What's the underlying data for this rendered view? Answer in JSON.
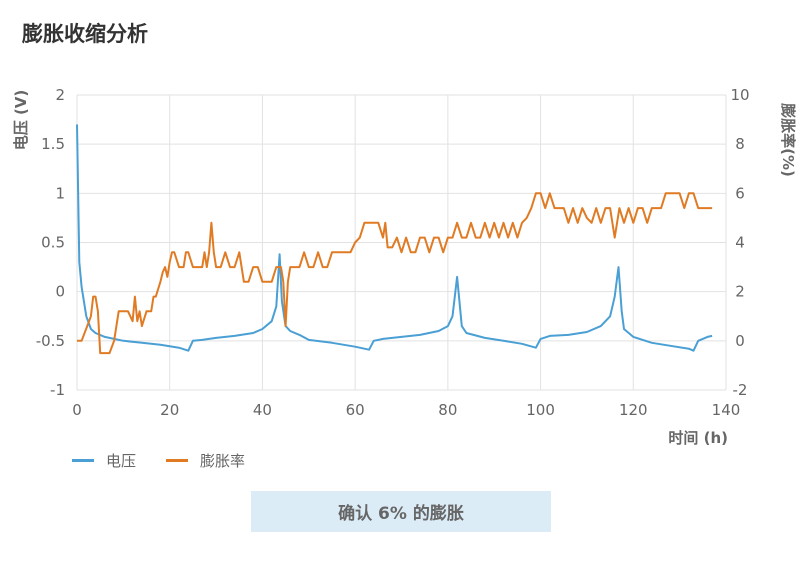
{
  "page": {
    "title": "膨胀收缩分析",
    "button_label": "确认 6% 的膨胀"
  },
  "chart_data": {
    "type": "line",
    "title": "",
    "xlabel": "时间 (h)",
    "ylabel_left": "电压 (V)",
    "ylabel_right": "膨胀率(%)",
    "xlim": [
      0,
      140
    ],
    "ylim_left": [
      -1,
      2
    ],
    "ylim_right": [
      -2,
      10
    ],
    "x_ticks": [
      0,
      20,
      40,
      60,
      80,
      100,
      120,
      140
    ],
    "y_ticks_left": [
      2,
      1.5,
      1,
      0.5,
      0,
      -0.5,
      -1
    ],
    "y_ticks_right": [
      10,
      8,
      6,
      4,
      2,
      0,
      -2
    ],
    "grid": true,
    "legend_position": "bottom-left",
    "colors": {
      "voltage": "#4a9fd4",
      "expansion": "#e07b24",
      "grid": "#e2e2e2",
      "axis_text": "#666666"
    },
    "series": [
      {
        "name": "电压",
        "axis": "left",
        "color": "#4a9fd4",
        "points": [
          [
            0,
            1.7
          ],
          [
            0.5,
            0.3
          ],
          [
            1,
            0.05
          ],
          [
            2,
            -0.25
          ],
          [
            3,
            -0.38
          ],
          [
            4,
            -0.42
          ],
          [
            6,
            -0.46
          ],
          [
            8,
            -0.48
          ],
          [
            10,
            -0.5
          ],
          [
            14,
            -0.52
          ],
          [
            18,
            -0.54
          ],
          [
            22,
            -0.57
          ],
          [
            24,
            -0.6
          ],
          [
            25,
            -0.5
          ],
          [
            27,
            -0.49
          ],
          [
            30,
            -0.47
          ],
          [
            34,
            -0.45
          ],
          [
            38,
            -0.42
          ],
          [
            40,
            -0.38
          ],
          [
            42,
            -0.3
          ],
          [
            43,
            -0.15
          ],
          [
            43.7,
            0.38
          ],
          [
            44.2,
            -0.1
          ],
          [
            45,
            -0.35
          ],
          [
            46,
            -0.4
          ],
          [
            48,
            -0.44
          ],
          [
            50,
            -0.49
          ],
          [
            55,
            -0.52
          ],
          [
            60,
            -0.56
          ],
          [
            63,
            -0.59
          ],
          [
            64,
            -0.5
          ],
          [
            66,
            -0.48
          ],
          [
            70,
            -0.46
          ],
          [
            74,
            -0.44
          ],
          [
            78,
            -0.4
          ],
          [
            80,
            -0.35
          ],
          [
            81,
            -0.25
          ],
          [
            82,
            0.15
          ],
          [
            83,
            -0.35
          ],
          [
            84,
            -0.42
          ],
          [
            88,
            -0.47
          ],
          [
            92,
            -0.5
          ],
          [
            96,
            -0.53
          ],
          [
            99,
            -0.57
          ],
          [
            100,
            -0.48
          ],
          [
            102,
            -0.45
          ],
          [
            106,
            -0.44
          ],
          [
            110,
            -0.41
          ],
          [
            113,
            -0.35
          ],
          [
            115,
            -0.25
          ],
          [
            116,
            -0.05
          ],
          [
            116.8,
            0.25
          ],
          [
            117.5,
            -0.2
          ],
          [
            118,
            -0.38
          ],
          [
            120,
            -0.46
          ],
          [
            124,
            -0.52
          ],
          [
            128,
            -0.55
          ],
          [
            132,
            -0.58
          ],
          [
            133,
            -0.6
          ],
          [
            134,
            -0.5
          ],
          [
            136,
            -0.46
          ],
          [
            137,
            -0.45
          ]
        ]
      },
      {
        "name": "膨胀率",
        "axis": "right",
        "color": "#e07b24",
        "points": [
          [
            0,
            0
          ],
          [
            1,
            0
          ],
          [
            2,
            0.5
          ],
          [
            3,
            1
          ],
          [
            3.5,
            1.8
          ],
          [
            4,
            1.8
          ],
          [
            4.5,
            1.2
          ],
          [
            5,
            -0.5
          ],
          [
            7,
            -0.5
          ],
          [
            8,
            0
          ],
          [
            9,
            1.2
          ],
          [
            11,
            1.2
          ],
          [
            12,
            0.8
          ],
          [
            12.5,
            1.8
          ],
          [
            13,
            0.8
          ],
          [
            13.5,
            1.2
          ],
          [
            14,
            0.6
          ],
          [
            15,
            1.2
          ],
          [
            16,
            1.2
          ],
          [
            16.5,
            1.8
          ],
          [
            17,
            1.8
          ],
          [
            18,
            2.4
          ],
          [
            18.5,
            2.8
          ],
          [
            19,
            3
          ],
          [
            19.5,
            2.6
          ],
          [
            20,
            3.2
          ],
          [
            20.5,
            3.6
          ],
          [
            21,
            3.6
          ],
          [
            22,
            3
          ],
          [
            23,
            3
          ],
          [
            23.5,
            3.6
          ],
          [
            24,
            3.6
          ],
          [
            25,
            3
          ],
          [
            26,
            3
          ],
          [
            27,
            3
          ],
          [
            27.5,
            3.6
          ],
          [
            28,
            3
          ],
          [
            28.5,
            3.6
          ],
          [
            29,
            4.8
          ],
          [
            29.5,
            3.6
          ],
          [
            30,
            3
          ],
          [
            31,
            3
          ],
          [
            32,
            3.6
          ],
          [
            33,
            3
          ],
          [
            34,
            3
          ],
          [
            35,
            3.6
          ],
          [
            35.5,
            3
          ],
          [
            36,
            2.4
          ],
          [
            37,
            2.4
          ],
          [
            38,
            3
          ],
          [
            39,
            3
          ],
          [
            40,
            2.4
          ],
          [
            41,
            2.4
          ],
          [
            42,
            2.4
          ],
          [
            43,
            3
          ],
          [
            44,
            3
          ],
          [
            44.5,
            2.4
          ],
          [
            45,
            0.6
          ],
          [
            45.5,
            2.4
          ],
          [
            46,
            3
          ],
          [
            47,
            3
          ],
          [
            48,
            3
          ],
          [
            49,
            3.6
          ],
          [
            50,
            3
          ],
          [
            51,
            3
          ],
          [
            52,
            3.6
          ],
          [
            53,
            3
          ],
          [
            54,
            3
          ],
          [
            55,
            3.6
          ],
          [
            56,
            3.6
          ],
          [
            57,
            3.6
          ],
          [
            58,
            3.6
          ],
          [
            59,
            3.6
          ],
          [
            60,
            4
          ],
          [
            61,
            4.2
          ],
          [
            62,
            4.8
          ],
          [
            63,
            4.8
          ],
          [
            64,
            4.8
          ],
          [
            65,
            4.8
          ],
          [
            66,
            4.2
          ],
          [
            66.5,
            4.8
          ],
          [
            67,
            3.8
          ],
          [
            68,
            3.8
          ],
          [
            69,
            4.2
          ],
          [
            70,
            3.6
          ],
          [
            71,
            4.2
          ],
          [
            72,
            3.6
          ],
          [
            73,
            3.6
          ],
          [
            74,
            4.2
          ],
          [
            75,
            4.2
          ],
          [
            76,
            3.6
          ],
          [
            77,
            4.2
          ],
          [
            78,
            4.2
          ],
          [
            79,
            3.6
          ],
          [
            80,
            4.2
          ],
          [
            81,
            4.2
          ],
          [
            82,
            4.8
          ],
          [
            83,
            4.2
          ],
          [
            84,
            4.2
          ],
          [
            85,
            4.8
          ],
          [
            86,
            4.2
          ],
          [
            87,
            4.2
          ],
          [
            88,
            4.8
          ],
          [
            89,
            4.2
          ],
          [
            90,
            4.8
          ],
          [
            91,
            4.2
          ],
          [
            92,
            4.8
          ],
          [
            93,
            4.2
          ],
          [
            94,
            4.8
          ],
          [
            95,
            4.2
          ],
          [
            96,
            4.8
          ],
          [
            97,
            5
          ],
          [
            98,
            5.4
          ],
          [
            99,
            6
          ],
          [
            100,
            6
          ],
          [
            101,
            5.4
          ],
          [
            102,
            6
          ],
          [
            103,
            5.4
          ],
          [
            104,
            5.4
          ],
          [
            105,
            5.4
          ],
          [
            106,
            4.8
          ],
          [
            107,
            5.4
          ],
          [
            108,
            4.8
          ],
          [
            109,
            5.4
          ],
          [
            110,
            5
          ],
          [
            111,
            4.8
          ],
          [
            112,
            5.4
          ],
          [
            113,
            4.8
          ],
          [
            114,
            5.4
          ],
          [
            115,
            5.4
          ],
          [
            116,
            4.2
          ],
          [
            117,
            5.4
          ],
          [
            118,
            4.8
          ],
          [
            119,
            5.4
          ],
          [
            120,
            4.8
          ],
          [
            121,
            5.4
          ],
          [
            122,
            5.4
          ],
          [
            123,
            4.8
          ],
          [
            124,
            5.4
          ],
          [
            125,
            5.4
          ],
          [
            126,
            5.4
          ],
          [
            127,
            6
          ],
          [
            128,
            6
          ],
          [
            129,
            6
          ],
          [
            130,
            6
          ],
          [
            131,
            5.4
          ],
          [
            132,
            6
          ],
          [
            133,
            6
          ],
          [
            134,
            5.4
          ],
          [
            135,
            5.4
          ],
          [
            136,
            5.4
          ],
          [
            137,
            5.4
          ]
        ]
      }
    ]
  }
}
